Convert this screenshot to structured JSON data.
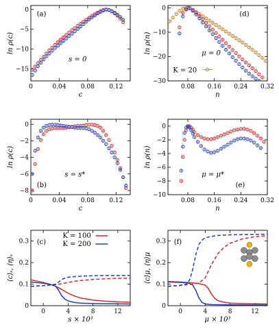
{
  "chart_data": [
    {
      "id": "a",
      "type": "scatter",
      "panel_label": "(a)",
      "annotation": "s = 0",
      "xlabel": "c",
      "ylabel": "ln ρ(c)",
      "xlim": [
        0,
        0.14
      ],
      "ylim": [
        -18,
        1
      ],
      "xticks": [
        0,
        0.04,
        0.08,
        0.12
      ],
      "xtick_labels": [
        "0",
        "0.04",
        "0.08",
        "0.12"
      ],
      "yticks": [
        0,
        -5,
        -10,
        -15
      ],
      "ytick_labels": [
        "0",
        "−5",
        "−10",
        "−15"
      ],
      "series": [
        {
          "color": "#d62728",
          "marker": "circle",
          "x": [
            0.002,
            0.006,
            0.01,
            0.014,
            0.018,
            0.022,
            0.026,
            0.03,
            0.034,
            0.038,
            0.042,
            0.046,
            0.05,
            0.054,
            0.058,
            0.062,
            0.066,
            0.07,
            0.074,
            0.078,
            0.082,
            0.086,
            0.09,
            0.094,
            0.098,
            0.102,
            0.106,
            0.11,
            0.114,
            0.118,
            0.122,
            0.126,
            0.13
          ],
          "y": [
            -15.2,
            -14.4,
            -13.5,
            -12.7,
            -11.9,
            -11.1,
            -10.3,
            -9.6,
            -8.9,
            -8.2,
            -7.6,
            -7.0,
            -6.4,
            -5.8,
            -5.2,
            -4.7,
            -4.1,
            -3.6,
            -3.1,
            -2.6,
            -2.1,
            -1.6,
            -1.2,
            -0.8,
            -0.4,
            -0.15,
            0.0,
            -0.15,
            -0.5,
            -1.0,
            -1.6,
            -2.3,
            -3.2
          ]
        },
        {
          "color": "#1f3fbf",
          "marker": "circle",
          "x": [
            0.002,
            0.006,
            0.01,
            0.014,
            0.018,
            0.022,
            0.026,
            0.03,
            0.034,
            0.038,
            0.042,
            0.046,
            0.05,
            0.054,
            0.058,
            0.062,
            0.066,
            0.07,
            0.074,
            0.078,
            0.082,
            0.086,
            0.09,
            0.094,
            0.098,
            0.102,
            0.106,
            0.11,
            0.114,
            0.118,
            0.122,
            0.126,
            0.13
          ],
          "y": [
            -16.5,
            -15.4,
            -14.3,
            -13.4,
            -12.6,
            -11.8,
            -11.1,
            -10.4,
            -9.7,
            -9.1,
            -8.5,
            -7.9,
            -7.3,
            -6.7,
            -6.1,
            -5.5,
            -4.9,
            -4.3,
            -3.7,
            -3.1,
            -2.5,
            -2.0,
            -1.5,
            -1.0,
            -0.6,
            -0.25,
            -0.05,
            -0.1,
            -0.4,
            -0.8,
            -1.3,
            -1.9,
            -2.6
          ]
        }
      ]
    },
    {
      "id": "d",
      "type": "scatter",
      "panel_label": "(d)",
      "annotation": "μ = 0",
      "legend_label": "K = 20",
      "xlabel": "n",
      "ylabel": "ln ρ(n)",
      "xlim": [
        0.02,
        0.32
      ],
      "ylim": [
        -30,
        1
      ],
      "xticks": [
        0.08,
        0.16,
        0.24,
        0.32
      ],
      "xtick_labels": [
        "0.08",
        "0.16",
        "0.24",
        "0.32"
      ],
      "yticks": [
        0,
        -10,
        -20,
        -30
      ],
      "ytick_labels": [
        "0",
        "−10",
        "−20",
        "−30"
      ],
      "series": [
        {
          "color": "#c07a1a",
          "marker": "circle",
          "x": [
            0.025,
            0.035,
            0.045,
            0.055,
            0.065,
            0.075,
            0.085,
            0.095,
            0.105,
            0.115,
            0.125,
            0.135,
            0.145,
            0.155,
            0.165,
            0.175,
            0.185,
            0.195,
            0.205,
            0.215,
            0.225,
            0.235,
            0.245,
            0.255,
            0.265,
            0.275,
            0.285,
            0.295,
            0.305,
            0.315
          ],
          "y": [
            -5.5,
            -4.0,
            -2.5,
            -1.2,
            -0.3,
            0.0,
            -0.2,
            -0.8,
            -1.6,
            -2.5,
            -3.4,
            -4.3,
            -5.2,
            -6.1,
            -7.0,
            -7.9,
            -8.8,
            -9.7,
            -10.6,
            -11.5,
            -12.4,
            -13.3,
            -14.2,
            -15.2,
            -16.2,
            -17.2,
            -18.3,
            -19.4,
            -20.6,
            -21.8
          ]
        },
        {
          "color": "#d62728",
          "marker": "circle",
          "x": [
            0.055,
            0.065,
            0.075,
            0.085,
            0.095,
            0.105,
            0.115,
            0.125,
            0.135,
            0.145,
            0.155,
            0.165,
            0.175,
            0.185,
            0.195,
            0.205,
            0.215,
            0.225,
            0.235,
            0.245,
            0.255,
            0.265,
            0.275,
            0.285,
            0.295,
            0.305
          ],
          "y": [
            -8.0,
            -2.0,
            -0.5,
            0.0,
            -0.8,
            -2.0,
            -3.3,
            -4.7,
            -6.1,
            -7.5,
            -8.9,
            -10.3,
            -11.7,
            -13.1,
            -14.5,
            -15.9,
            -17.3,
            -18.6,
            -19.9,
            -21.2,
            -22.4,
            -23.6,
            -24.8,
            -26.0,
            -27.3,
            -28.6
          ]
        },
        {
          "color": "#1f3fbf",
          "marker": "circle",
          "x": [
            0.055,
            0.065,
            0.075,
            0.085,
            0.095,
            0.105,
            0.115,
            0.125,
            0.135,
            0.145,
            0.155,
            0.165,
            0.175,
            0.185,
            0.195,
            0.205,
            0.215,
            0.225,
            0.235,
            0.245,
            0.255,
            0.265,
            0.275,
            0.285,
            0.295
          ],
          "y": [
            -10.5,
            -3.5,
            -0.7,
            -0.1,
            -1.2,
            -2.7,
            -4.3,
            -6.0,
            -7.6,
            -9.2,
            -10.8,
            -12.4,
            -14.0,
            -15.6,
            -17.2,
            -18.7,
            -20.2,
            -21.7,
            -23.1,
            -24.5,
            -25.8,
            -27.0,
            -28.1,
            -29.1,
            -30.0
          ]
        }
      ]
    },
    {
      "id": "b",
      "type": "scatter",
      "panel_label": "(b)",
      "annotation": "s = s*",
      "xlabel": "c",
      "ylabel": "ln ρ(c)",
      "xlim": [
        0,
        0.14
      ],
      "ylim": [
        -8.5,
        0.6
      ],
      "xticks": [
        0,
        0.04,
        0.08,
        0.12
      ],
      "xtick_labels": [
        "0",
        "0.04",
        "0.08",
        "0.12"
      ],
      "yticks": [
        0,
        -2,
        -4,
        -6,
        -8
      ],
      "ytick_labels": [
        "0",
        "−2",
        "−4",
        "−6",
        "−8"
      ],
      "series": [
        {
          "color": "#d62728",
          "marker": "circle",
          "x": [
            0.002,
            0.006,
            0.01,
            0.014,
            0.018,
            0.022,
            0.026,
            0.03,
            0.034,
            0.038,
            0.042,
            0.046,
            0.05,
            0.054,
            0.058,
            0.062,
            0.066,
            0.07,
            0.074,
            0.078,
            0.082,
            0.086,
            0.09,
            0.094,
            0.098,
            0.102,
            0.106,
            0.11,
            0.114,
            0.118,
            0.122,
            0.126,
            0.13,
            0.134
          ],
          "y": [
            -8.0,
            -4.8,
            -3.0,
            -1.9,
            -1.2,
            -0.8,
            -0.6,
            -0.5,
            -0.45,
            -0.45,
            -0.45,
            -0.45,
            -0.4,
            -0.35,
            -0.3,
            -0.25,
            -0.2,
            -0.2,
            -0.15,
            -0.1,
            -0.05,
            -0.05,
            -0.1,
            -0.2,
            -0.4,
            -0.8,
            -1.3,
            -1.9,
            -2.6,
            -3.4,
            -4.3,
            -5.3,
            -6.4,
            -7.7
          ]
        },
        {
          "color": "#1f3fbf",
          "marker": "circle",
          "x": [
            0.002,
            0.006,
            0.01,
            0.014,
            0.018,
            0.022,
            0.026,
            0.03,
            0.034,
            0.038,
            0.042,
            0.046,
            0.05,
            0.054,
            0.058,
            0.062,
            0.066,
            0.07,
            0.074,
            0.078,
            0.082,
            0.086,
            0.09,
            0.094,
            0.098,
            0.102,
            0.106,
            0.11,
            0.114,
            0.118,
            0.122,
            0.126,
            0.13,
            0.134
          ],
          "y": [
            -6.0,
            -3.2,
            -1.6,
            -0.8,
            -0.4,
            -0.2,
            -0.1,
            -0.05,
            -0.05,
            -0.1,
            -0.15,
            -0.2,
            -0.25,
            -0.3,
            -0.35,
            -0.4,
            -0.45,
            -0.45,
            -0.45,
            -0.5,
            -0.6,
            -0.8,
            -1.0,
            -1.3,
            -1.6,
            -2.0,
            -2.4,
            -2.9,
            -3.4,
            -4.0,
            -4.7,
            -5.5,
            -6.4,
            -7.4
          ]
        }
      ]
    },
    {
      "id": "e",
      "type": "scatter",
      "panel_label": "(e)",
      "annotation": "μ = μ*",
      "xlabel": "n",
      "ylabel": "ln ρ(n)",
      "xlim": [
        0.02,
        0.32
      ],
      "ylim": [
        -10,
        1
      ],
      "xticks": [
        0.08,
        0.16,
        0.24,
        0.32
      ],
      "xtick_labels": [
        "0.08",
        "0.16",
        "0.24",
        "0.32"
      ],
      "yticks": [
        0,
        -2,
        -4,
        -6,
        -8,
        -10
      ],
      "ytick_labels": [
        "0",
        "−2",
        "−4",
        "−6",
        "−8",
        "−10"
      ],
      "series": [
        {
          "color": "#d62728",
          "marker": "circle",
          "x": [
            0.06,
            0.065,
            0.07,
            0.075,
            0.08,
            0.085,
            0.09,
            0.095,
            0.1,
            0.11,
            0.12,
            0.13,
            0.14,
            0.15,
            0.16,
            0.17,
            0.18,
            0.19,
            0.2,
            0.21,
            0.22,
            0.23,
            0.24,
            0.25,
            0.26,
            0.27,
            0.28,
            0.29,
            0.3,
            0.31
          ],
          "y": [
            -8.0,
            -4.5,
            -2.0,
            -0.6,
            -0.1,
            0.0,
            -0.2,
            -0.5,
            -0.9,
            -1.3,
            -1.6,
            -1.8,
            -1.9,
            -1.9,
            -1.8,
            -1.6,
            -1.4,
            -1.2,
            -1.0,
            -0.8,
            -0.6,
            -0.5,
            -0.4,
            -0.4,
            -0.5,
            -0.7,
            -1.0,
            -1.4,
            -1.8,
            -2.3
          ]
        },
        {
          "color": "#1f3fbf",
          "marker": "circle",
          "x": [
            0.06,
            0.065,
            0.07,
            0.075,
            0.08,
            0.085,
            0.09,
            0.095,
            0.1,
            0.11,
            0.12,
            0.13,
            0.14,
            0.15,
            0.16,
            0.17,
            0.18,
            0.19,
            0.2,
            0.21,
            0.22,
            0.23,
            0.24,
            0.25,
            0.26,
            0.27,
            0.28,
            0.29,
            0.3
          ],
          "y": [
            -6.5,
            -3.0,
            -1.0,
            -0.2,
            0.0,
            -0.2,
            -0.6,
            -1.1,
            -1.6,
            -2.3,
            -2.9,
            -3.4,
            -3.7,
            -3.9,
            -3.8,
            -3.6,
            -3.3,
            -3.0,
            -2.7,
            -2.4,
            -2.1,
            -1.9,
            -1.8,
            -1.8,
            -1.9,
            -2.1,
            -2.4,
            -2.8,
            -3.2
          ]
        }
      ]
    },
    {
      "id": "c",
      "type": "line",
      "panel_label": "(c)",
      "xlabel": "s × 10³",
      "ylabel": "⟨c⟩ₛ, ⟨η⟩ₛ",
      "xlim": [
        -2,
        14
      ],
      "ylim": [
        0,
        0.35
      ],
      "xticks": [
        0,
        4,
        8,
        12
      ],
      "xtick_labels": [
        "0",
        "4",
        "8",
        "12"
      ],
      "yticks": [
        0,
        0.1,
        0.2,
        0.3
      ],
      "ytick_labels": [
        "0",
        "0.1",
        "0.2",
        "0.3"
      ],
      "legend": [
        "K = 100",
        "K = 200"
      ],
      "series": [
        {
          "name": "K = 100",
          "color": "#d62728",
          "dash": false,
          "x": [
            -2,
            0,
            1,
            2,
            3,
            4,
            5,
            6,
            8,
            10,
            12,
            14
          ],
          "y": [
            0.12,
            0.108,
            0.1,
            0.09,
            0.075,
            0.058,
            0.045,
            0.036,
            0.026,
            0.021,
            0.018,
            0.016
          ]
        },
        {
          "name": "K = 200",
          "color": "#1f3fbf",
          "dash": false,
          "x": [
            -2,
            0,
            1,
            2,
            2.5,
            3,
            3.5,
            4,
            5,
            6,
            8,
            10,
            14
          ],
          "y": [
            0.11,
            0.104,
            0.1,
            0.09,
            0.07,
            0.045,
            0.03,
            0.022,
            0.015,
            0.012,
            0.01,
            0.009,
            0.008
          ]
        },
        {
          "color": "#d62728",
          "dash": true,
          "x": [
            -2,
            0,
            1,
            2,
            3,
            4,
            5,
            6,
            8,
            10,
            12,
            14
          ],
          "y": [
            0.09,
            0.093,
            0.096,
            0.098,
            0.102,
            0.108,
            0.113,
            0.117,
            0.122,
            0.125,
            0.127,
            0.128
          ]
        },
        {
          "color": "#1f3fbf",
          "dash": true,
          "x": [
            -2,
            0,
            1,
            2,
            2.5,
            3,
            3.5,
            4,
            5,
            6,
            8,
            10,
            14
          ],
          "y": [
            0.09,
            0.093,
            0.096,
            0.1,
            0.11,
            0.122,
            0.128,
            0.132,
            0.135,
            0.137,
            0.139,
            0.14,
            0.14
          ]
        }
      ]
    },
    {
      "id": "f",
      "type": "line",
      "panel_label": "(f)",
      "xlabel": "μ × 10³",
      "ylabel": "⟨c⟩μ, ⟨η⟩μ",
      "xlim": [
        -2,
        14
      ],
      "ylim": [
        0,
        0.35
      ],
      "xticks": [
        0,
        4,
        8,
        12
      ],
      "xtick_labels": [
        "0",
        "4",
        "8",
        "12"
      ],
      "yticks": [
        0,
        0.1,
        0.2,
        0.3
      ],
      "ytick_labels": [
        "0",
        "0.1",
        "0.2",
        "0.3"
      ],
      "series": [
        {
          "color": "#d62728",
          "dash": false,
          "x": [
            -2,
            0,
            2,
            3,
            4,
            4.5,
            5,
            5.5,
            6,
            7,
            8,
            10,
            14
          ],
          "y": [
            0.112,
            0.11,
            0.106,
            0.103,
            0.095,
            0.08,
            0.055,
            0.035,
            0.024,
            0.016,
            0.012,
            0.01,
            0.008
          ]
        },
        {
          "color": "#1f3fbf",
          "dash": false,
          "x": [
            -2,
            0,
            1,
            1.5,
            2,
            2.5,
            3,
            3.5,
            4,
            5,
            8,
            14
          ],
          "y": [
            0.11,
            0.108,
            0.106,
            0.103,
            0.095,
            0.07,
            0.035,
            0.015,
            0.008,
            0.005,
            0.004,
            0.003
          ]
        },
        {
          "color": "#d62728",
          "dash": true,
          "x": [
            -2,
            0,
            2,
            3,
            4,
            5,
            6,
            7,
            8,
            10,
            12,
            14
          ],
          "y": [
            0.09,
            0.094,
            0.1,
            0.105,
            0.13,
            0.19,
            0.24,
            0.27,
            0.29,
            0.31,
            0.32,
            0.325
          ]
        },
        {
          "color": "#1f3fbf",
          "dash": true,
          "x": [
            -2,
            0,
            1,
            1.5,
            2,
            2.5,
            3,
            3.5,
            4,
            5,
            6,
            8,
            10,
            14
          ],
          "y": [
            0.09,
            0.095,
            0.1,
            0.12,
            0.17,
            0.24,
            0.285,
            0.305,
            0.315,
            0.322,
            0.326,
            0.329,
            0.33,
            0.332
          ]
        }
      ]
    }
  ]
}
